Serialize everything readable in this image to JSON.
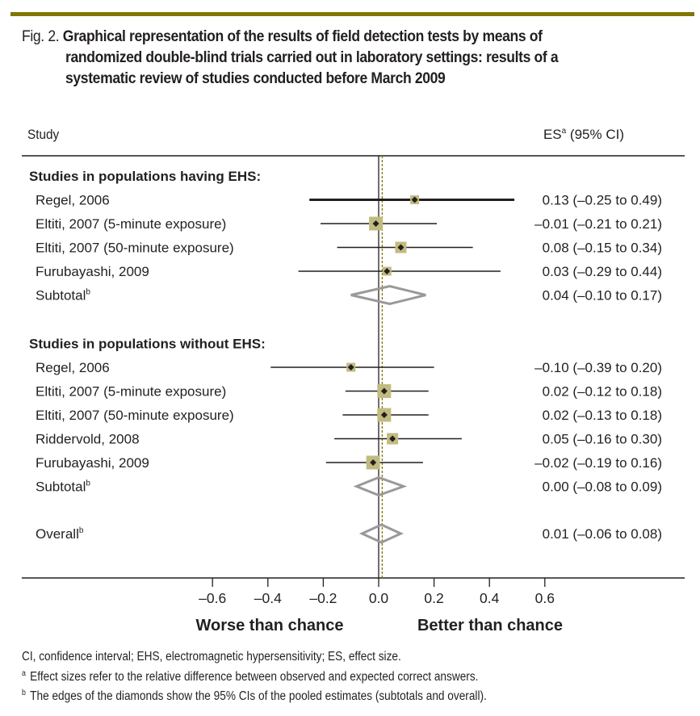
{
  "figure": {
    "prefix": "Fig. 2.",
    "title_line1": "Graphical representation of the results of field detection tests by means of",
    "title_line2": "randomized double-blind trials carried out in laboratory settings: results of a",
    "title_line3": "systematic review of studies conducted before March 2009",
    "accent_color": "#807600",
    "marker_color": "#c2bb80",
    "diamond_color": "#999999"
  },
  "chart_data": {
    "type": "forest",
    "header_left": "Study",
    "header_right": "ES",
    "header_right_sup": "a",
    "header_right_tail": " (95% CI)",
    "xlabel_left": "Worse than chance",
    "xlabel_right": "Better than chance",
    "xlim": [
      -0.6,
      0.6
    ],
    "xticks": [
      -0.6,
      -0.4,
      -0.2,
      0.0,
      0.2,
      0.4,
      0.6
    ],
    "xtick_labels": [
      "–0.6",
      "–0.4",
      "–0.2",
      "0.0",
      "0.2",
      "0.4",
      "0.6"
    ],
    "null_line": 0.0,
    "overall_line": 0.01,
    "groups": [
      {
        "label": "Studies in populations having EHS:",
        "studies": [
          {
            "name": "Regel, 2006",
            "es": 0.13,
            "lo": -0.25,
            "hi": 0.49,
            "text": "0.13 (–0.25 to 0.49)",
            "weight": "small",
            "bold_line": true
          },
          {
            "name": "Eltiti, 2007 (5-minute exposure)",
            "es": -0.01,
            "lo": -0.21,
            "hi": 0.21,
            "text": "–0.01 (–0.21 to 0.21)",
            "weight": "large"
          },
          {
            "name": "Eltiti, 2007 (50-minute exposure)",
            "es": 0.08,
            "lo": -0.15,
            "hi": 0.34,
            "text": "0.08 (–0.15 to 0.34)",
            "weight": "medium"
          },
          {
            "name": "Furubayashi, 2009",
            "es": 0.03,
            "lo": -0.29,
            "hi": 0.44,
            "text": "0.03 (–0.29 to 0.44)",
            "weight": "small"
          }
        ],
        "subtotal": {
          "name": "Subtotal",
          "sup": "b",
          "es": 0.04,
          "lo": -0.1,
          "hi": 0.17,
          "text": "0.04 (–0.10 to 0.17)"
        }
      },
      {
        "label": "Studies in populations without EHS:",
        "studies": [
          {
            "name": "Regel, 2006",
            "es": -0.1,
            "lo": -0.39,
            "hi": 0.2,
            "text": "–0.10 (–0.39 to 0.20)",
            "weight": "small"
          },
          {
            "name": "Eltiti, 2007 (5-minute exposure)",
            "es": 0.02,
            "lo": -0.12,
            "hi": 0.18,
            "text": "0.02 (–0.12 to 0.18)",
            "weight": "large"
          },
          {
            "name": "Eltiti, 2007 (50-minute exposure)",
            "es": 0.02,
            "lo": -0.13,
            "hi": 0.18,
            "text": "0.02 (–0.13 to 0.18)",
            "weight": "large"
          },
          {
            "name": "Riddervold, 2008",
            "es": 0.05,
            "lo": -0.16,
            "hi": 0.3,
            "text": "0.05 (–0.16 to 0.30)",
            "weight": "medium"
          },
          {
            "name": "Furubayashi, 2009",
            "es": -0.02,
            "lo": -0.19,
            "hi": 0.16,
            "text": "–0.02 (–0.19 to 0.16)",
            "weight": "large"
          }
        ],
        "subtotal": {
          "name": "Subtotal",
          "sup": "b",
          "es": 0.0,
          "lo": -0.08,
          "hi": 0.09,
          "text": "0.00 (–0.08 to 0.09)"
        }
      }
    ],
    "overall": {
      "name": "Overall",
      "sup": "b",
      "es": 0.01,
      "lo": -0.06,
      "hi": 0.08,
      "text": "0.01 (–0.06 to 0.08)"
    }
  },
  "footnotes": {
    "abbrev": "CI, confidence interval; EHS, electromagnetic hypersensitivity; ES, effect size.",
    "a_mark": "a",
    "a_text": "Effect sizes refer to the relative difference between observed and expected correct answers.",
    "b_mark": "b",
    "b_text": "The edges of the diamonds show the 95% CIs of the pooled estimates (subtotals and overall)."
  }
}
